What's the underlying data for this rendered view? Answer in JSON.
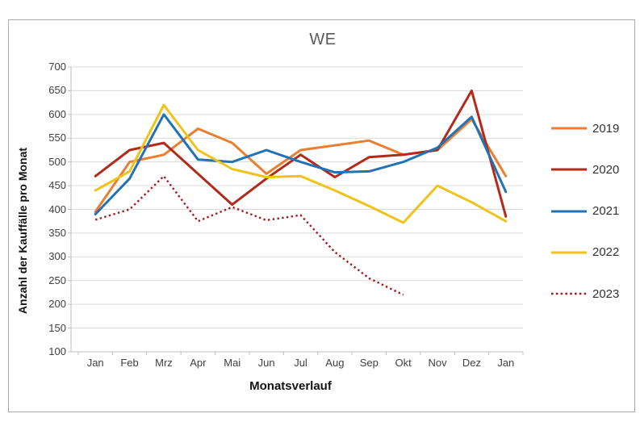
{
  "chart_data": {
    "type": "line",
    "title": "WE",
    "xlabel": "Monatsverlauf",
    "ylabel": "Anzahl der Kauffälle pro Monat",
    "categories": [
      "Jan",
      "Feb",
      "Mrz",
      "Apr",
      "Mai",
      "Jun",
      "Jul",
      "Aug",
      "Sep",
      "Okt",
      "Nov",
      "Dez",
      "Jan"
    ],
    "ylim": [
      100,
      700
    ],
    "y_tick_step": 50,
    "grid": true,
    "legend_position": "right",
    "series": [
      {
        "name": "2019",
        "color": "#ED7D31",
        "style": "solid",
        "values": [
          395,
          500,
          515,
          570,
          540,
          475,
          525,
          535,
          545,
          515,
          525,
          590,
          470
        ]
      },
      {
        "name": "2020",
        "color": "#B3291A",
        "style": "solid",
        "values": [
          470,
          525,
          540,
          475,
          410,
          465,
          515,
          468,
          510,
          515,
          525,
          650,
          385
        ]
      },
      {
        "name": "2021",
        "color": "#2273B5",
        "style": "solid",
        "values": [
          390,
          465,
          600,
          505,
          500,
          525,
          500,
          478,
          480,
          500,
          530,
          595,
          437
        ]
      },
      {
        "name": "2022",
        "color": "#EFC319",
        "style": "solid",
        "values": [
          440,
          480,
          620,
          525,
          485,
          468,
          470,
          440,
          407,
          372,
          450,
          415,
          375
        ]
      },
      {
        "name": "2023",
        "color": "#9E1B21",
        "style": "dotted",
        "values": [
          378,
          400,
          470,
          375,
          405,
          377,
          388,
          310,
          255,
          220,
          null,
          null,
          null
        ]
      }
    ]
  },
  "colors": {
    "gridline": "#D9D9D9",
    "axis": "#BFBFBF",
    "tick_label": "#404040",
    "title": "#595959",
    "border": "#ABABAB",
    "background": "#FFFFFF"
  }
}
